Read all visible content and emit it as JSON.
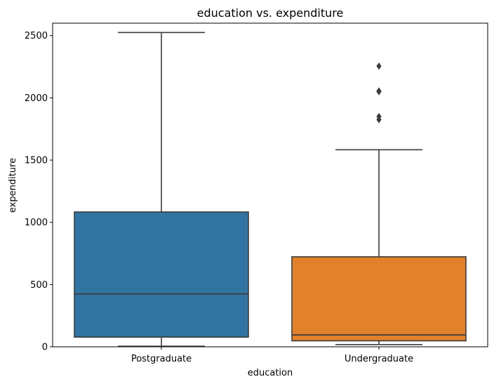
{
  "chart_data": {
    "type": "box",
    "title": "education vs. expenditure",
    "xlabel": "education",
    "ylabel": "expenditure",
    "ylim": [
      0,
      2600
    ],
    "yticks": [
      0,
      500,
      1000,
      1500,
      2000,
      2500
    ],
    "categories": [
      "Postgraduate",
      "Undergraduate"
    ],
    "colors": [
      "#3274a1",
      "#e1812c"
    ],
    "boxes": [
      {
        "category": "Postgraduate",
        "whisker_low": 5,
        "q1": 78,
        "median": 425,
        "q3": 1083,
        "whisker_high": 2525,
        "outliers": []
      },
      {
        "category": "Undergraduate",
        "whisker_low": 18,
        "q1": 48,
        "median": 95,
        "q3": 723,
        "whisker_high": 1583,
        "outliers": [
          1825,
          1850,
          2050,
          2055,
          2255
        ]
      }
    ]
  }
}
